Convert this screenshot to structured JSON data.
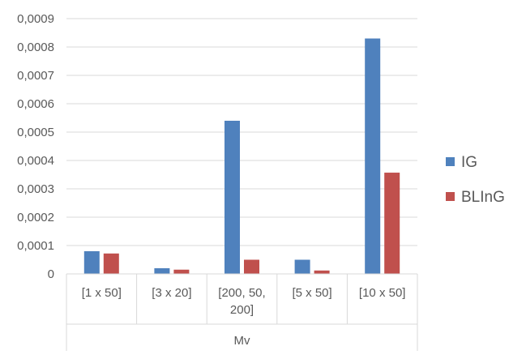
{
  "chart_data": {
    "type": "bar",
    "categories": [
      "[1 x 50]",
      "[3 x 20]",
      "[200, 50, 200]",
      "[5 x 50]",
      "[10 x 50]"
    ],
    "category_label_lines": [
      [
        "[1 x 50]"
      ],
      [
        "[3 x 20]"
      ],
      [
        "[200, 50,",
        "200]"
      ],
      [
        "[5 x 50]"
      ],
      [
        "[10 x 50]"
      ]
    ],
    "group_label": "Mv",
    "series": [
      {
        "name": "IG",
        "color": "#4F81BD",
        "values": [
          8e-05,
          2e-05,
          0.00054,
          5e-05,
          0.00083
        ]
      },
      {
        "name": "BLInG",
        "color": "#C0504D",
        "values": [
          7.2e-05,
          1.5e-05,
          5e-05,
          1.2e-05,
          0.000357
        ]
      }
    ],
    "yticks": [
      "0",
      "0,0001",
      "0,0002",
      "0,0003",
      "0,0004",
      "0,0005",
      "0,0006",
      "0,0007",
      "0,0008",
      "0,0009"
    ],
    "ylim": [
      0,
      0.0009
    ],
    "grid": true,
    "legend_position": "right",
    "title": "",
    "xlabel": "",
    "ylabel": ""
  }
}
